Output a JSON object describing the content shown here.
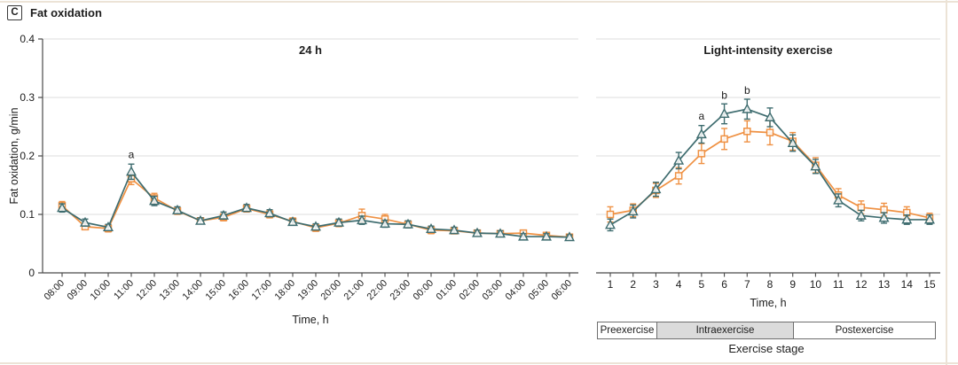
{
  "panel": {
    "label": "C",
    "title": "Fat oxidation"
  },
  "colors": {
    "teal_series": "#3e6c6f",
    "orange_series": "#ef9143",
    "grid": "#e3e3e3",
    "axis": "#4a4a4a",
    "text": "#1c1c1c",
    "stage_shaded_fill": "#dbdbdb",
    "stage_border": "#6e6e6e",
    "page_border": "#ece3d6"
  },
  "chart_data": [
    {
      "type": "line",
      "title": "24 h",
      "xlabel": "Time, h",
      "ylabel": "Fat oxidation, g/min",
      "ylim": [
        0,
        0.4
      ],
      "yticks": [
        0,
        0.1,
        0.2,
        0.3,
        0.4
      ],
      "ytick_labels": [
        "0",
        "0.1",
        "0.2",
        "0.3",
        "0.4"
      ],
      "grid": true,
      "legend": "none",
      "categories": [
        "08:00",
        "09:00",
        "10:00",
        "11:00",
        "12:00",
        "13:00",
        "14:00",
        "15:00",
        "16:00",
        "17:00",
        "18:00",
        "19:00",
        "20:00",
        "21:00",
        "22:00",
        "23:00",
        "00:00",
        "01:00",
        "02:00",
        "03:00",
        "04:00",
        "05:00",
        "06:00"
      ],
      "series": [
        {
          "name": "orange-square-series",
          "marker": "square",
          "color": "#ef9143",
          "values": [
            0.115,
            0.079,
            0.076,
            0.161,
            0.128,
            0.106,
            0.089,
            0.095,
            0.11,
            0.1,
            0.088,
            0.077,
            0.085,
            0.098,
            0.092,
            0.083,
            0.073,
            0.072,
            0.068,
            0.067,
            0.068,
            0.064,
            0.061
          ],
          "errors": [
            0.007,
            0.005,
            0.006,
            0.01,
            0.008,
            0.006,
            0.005,
            0.006,
            0.006,
            0.006,
            0.006,
            0.006,
            0.006,
            0.011,
            0.008,
            0.006,
            0.006,
            0.005,
            0.005,
            0.005,
            0.005,
            0.005,
            0.004
          ]
        },
        {
          "name": "teal-triangle-series",
          "marker": "triangle",
          "color": "#3e6c6f",
          "values": [
            0.111,
            0.086,
            0.078,
            0.173,
            0.123,
            0.107,
            0.089,
            0.098,
            0.111,
            0.102,
            0.087,
            0.079,
            0.086,
            0.09,
            0.084,
            0.083,
            0.075,
            0.073,
            0.068,
            0.067,
            0.062,
            0.062,
            0.061
          ],
          "errors": [
            0.007,
            0.006,
            0.005,
            0.013,
            0.008,
            0.006,
            0.005,
            0.006,
            0.006,
            0.006,
            0.005,
            0.005,
            0.006,
            0.007,
            0.006,
            0.006,
            0.005,
            0.005,
            0.005,
            0.005,
            0.005,
            0.005,
            0.004
          ]
        }
      ],
      "annotations": [
        {
          "text": "a",
          "x": "11:00",
          "y": 0.196
        }
      ]
    },
    {
      "type": "line",
      "title": "Light-intensity exercise",
      "xlabel": "Time, h",
      "ylim": [
        0,
        0.4
      ],
      "yticks": [
        0.1,
        0.2,
        0.3,
        0.4
      ],
      "ytick_labels": [],
      "grid": true,
      "legend": "none",
      "categories": [
        "1",
        "2",
        "3",
        "4",
        "5",
        "6",
        "7",
        "8",
        "9",
        "10",
        "11",
        "12",
        "13",
        "14",
        "15"
      ],
      "series": [
        {
          "name": "orange-square-series",
          "marker": "square",
          "color": "#ef9143",
          "values": [
            0.1,
            0.107,
            0.141,
            0.166,
            0.204,
            0.229,
            0.242,
            0.24,
            0.225,
            0.184,
            0.133,
            0.112,
            0.108,
            0.103,
            0.094
          ],
          "errors": [
            0.013,
            0.011,
            0.012,
            0.014,
            0.017,
            0.018,
            0.018,
            0.021,
            0.015,
            0.013,
            0.011,
            0.011,
            0.011,
            0.01,
            0.008
          ]
        },
        {
          "name": "teal-triangle-series",
          "marker": "triangle",
          "color": "#3e6c6f",
          "values": [
            0.082,
            0.105,
            0.143,
            0.192,
            0.237,
            0.272,
            0.28,
            0.266,
            0.222,
            0.182,
            0.124,
            0.098,
            0.094,
            0.091,
            0.091
          ],
          "errors": [
            0.01,
            0.011,
            0.012,
            0.014,
            0.015,
            0.017,
            0.017,
            0.016,
            0.014,
            0.012,
            0.011,
            0.009,
            0.009,
            0.008,
            0.008
          ]
        }
      ],
      "annotations": [
        {
          "text": "a",
          "x": "5",
          "y": 0.262
        },
        {
          "text": "b",
          "x": "6",
          "y": 0.298
        },
        {
          "text": "b",
          "x": "7",
          "y": 0.306
        }
      ],
      "stage_bar": {
        "label": "Exercise stage",
        "segments": [
          {
            "label": "Preexercise",
            "shaded": false
          },
          {
            "label": "Intraexercise",
            "shaded": true
          },
          {
            "label": "Postexercise",
            "shaded": false
          }
        ]
      }
    }
  ]
}
